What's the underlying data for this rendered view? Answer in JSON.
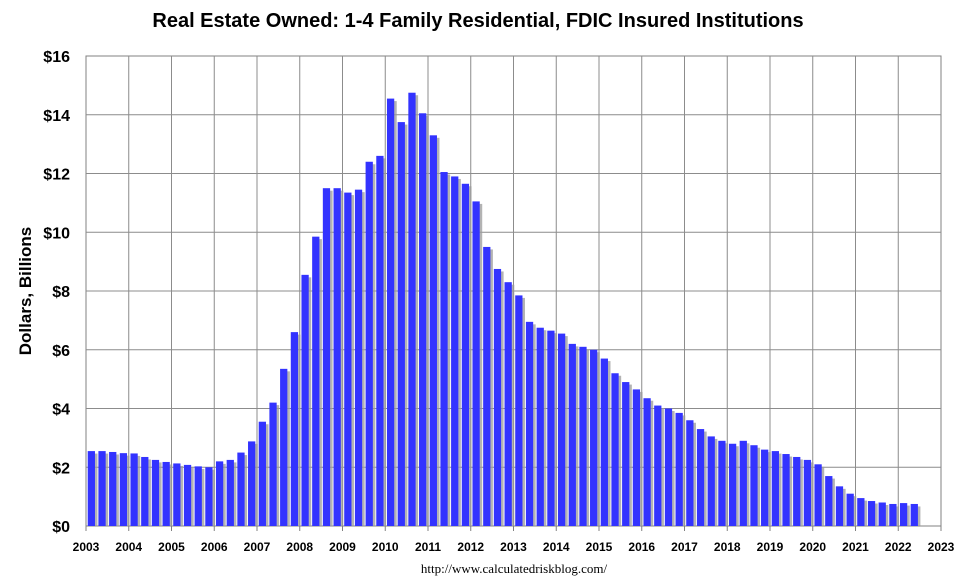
{
  "chart_data": {
    "type": "bar",
    "title": "Real Estate Owned: 1-4 Family Residential, FDIC Insured Institutions",
    "xlabel": "",
    "ylabel": "Dollars, Billions",
    "ylim": [
      0,
      16
    ],
    "y_ticks": [
      "$0",
      "$2",
      "$4",
      "$6",
      "$8",
      "$10",
      "$12",
      "$14",
      "$16"
    ],
    "x_range": [
      2003,
      2023
    ],
    "x_ticks": [
      "2003",
      "2004",
      "2005",
      "2006",
      "2007",
      "2008",
      "2009",
      "2010",
      "2011",
      "2012",
      "2013",
      "2014",
      "2015",
      "2016",
      "2017",
      "2018",
      "2019",
      "2020",
      "2021",
      "2022",
      "2023"
    ],
    "grid": true,
    "bar_color": "#3333ff",
    "shadow_color": "#9a9a9a",
    "categories": [
      "2003Q1",
      "2003Q2",
      "2003Q3",
      "2003Q4",
      "2004Q1",
      "2004Q2",
      "2004Q3",
      "2004Q4",
      "2005Q1",
      "2005Q2",
      "2005Q3",
      "2005Q4",
      "2006Q1",
      "2006Q2",
      "2006Q3",
      "2006Q4",
      "2007Q1",
      "2007Q2",
      "2007Q3",
      "2007Q4",
      "2008Q1",
      "2008Q2",
      "2008Q3",
      "2008Q4",
      "2009Q1",
      "2009Q2",
      "2009Q3",
      "2009Q4",
      "2010Q1",
      "2010Q2",
      "2010Q3",
      "2010Q4",
      "2011Q1",
      "2011Q2",
      "2011Q3",
      "2011Q4",
      "2012Q1",
      "2012Q2",
      "2012Q3",
      "2012Q4",
      "2013Q1",
      "2013Q2",
      "2013Q3",
      "2013Q4",
      "2014Q1",
      "2014Q2",
      "2014Q3",
      "2014Q4",
      "2015Q1",
      "2015Q2",
      "2015Q3",
      "2015Q4",
      "2016Q1",
      "2016Q2",
      "2016Q3",
      "2016Q4",
      "2017Q1",
      "2017Q2",
      "2017Q3",
      "2017Q4",
      "2018Q1",
      "2018Q2",
      "2018Q3",
      "2018Q4",
      "2019Q1",
      "2019Q2",
      "2019Q3",
      "2019Q4",
      "2020Q1",
      "2020Q2",
      "2020Q3",
      "2020Q4",
      "2021Q1",
      "2021Q2",
      "2021Q3",
      "2021Q4",
      "2022Q1",
      "2022Q2"
    ],
    "values": [
      2.55,
      2.55,
      2.52,
      2.48,
      2.47,
      2.35,
      2.25,
      2.18,
      2.13,
      2.08,
      2.03,
      2.0,
      2.2,
      2.25,
      2.5,
      2.88,
      3.55,
      4.2,
      5.35,
      6.6,
      8.55,
      9.85,
      11.5,
      11.5,
      11.35,
      11.45,
      12.4,
      12.6,
      14.55,
      13.75,
      14.75,
      14.05,
      13.3,
      12.05,
      11.9,
      11.65,
      11.05,
      9.5,
      8.75,
      8.3,
      7.85,
      6.95,
      6.75,
      6.65,
      6.55,
      6.2,
      6.1,
      6.0,
      5.7,
      5.2,
      4.9,
      4.65,
      4.35,
      4.1,
      4.0,
      3.85,
      3.6,
      3.3,
      3.05,
      2.9,
      2.8,
      2.9,
      2.75,
      2.6,
      2.55,
      2.45,
      2.35,
      2.25,
      2.1,
      1.7,
      1.35,
      1.1,
      0.95,
      0.85,
      0.8,
      0.75,
      0.78,
      0.75
    ]
  },
  "source_url": "http://www.calculatedriskblog.com/"
}
